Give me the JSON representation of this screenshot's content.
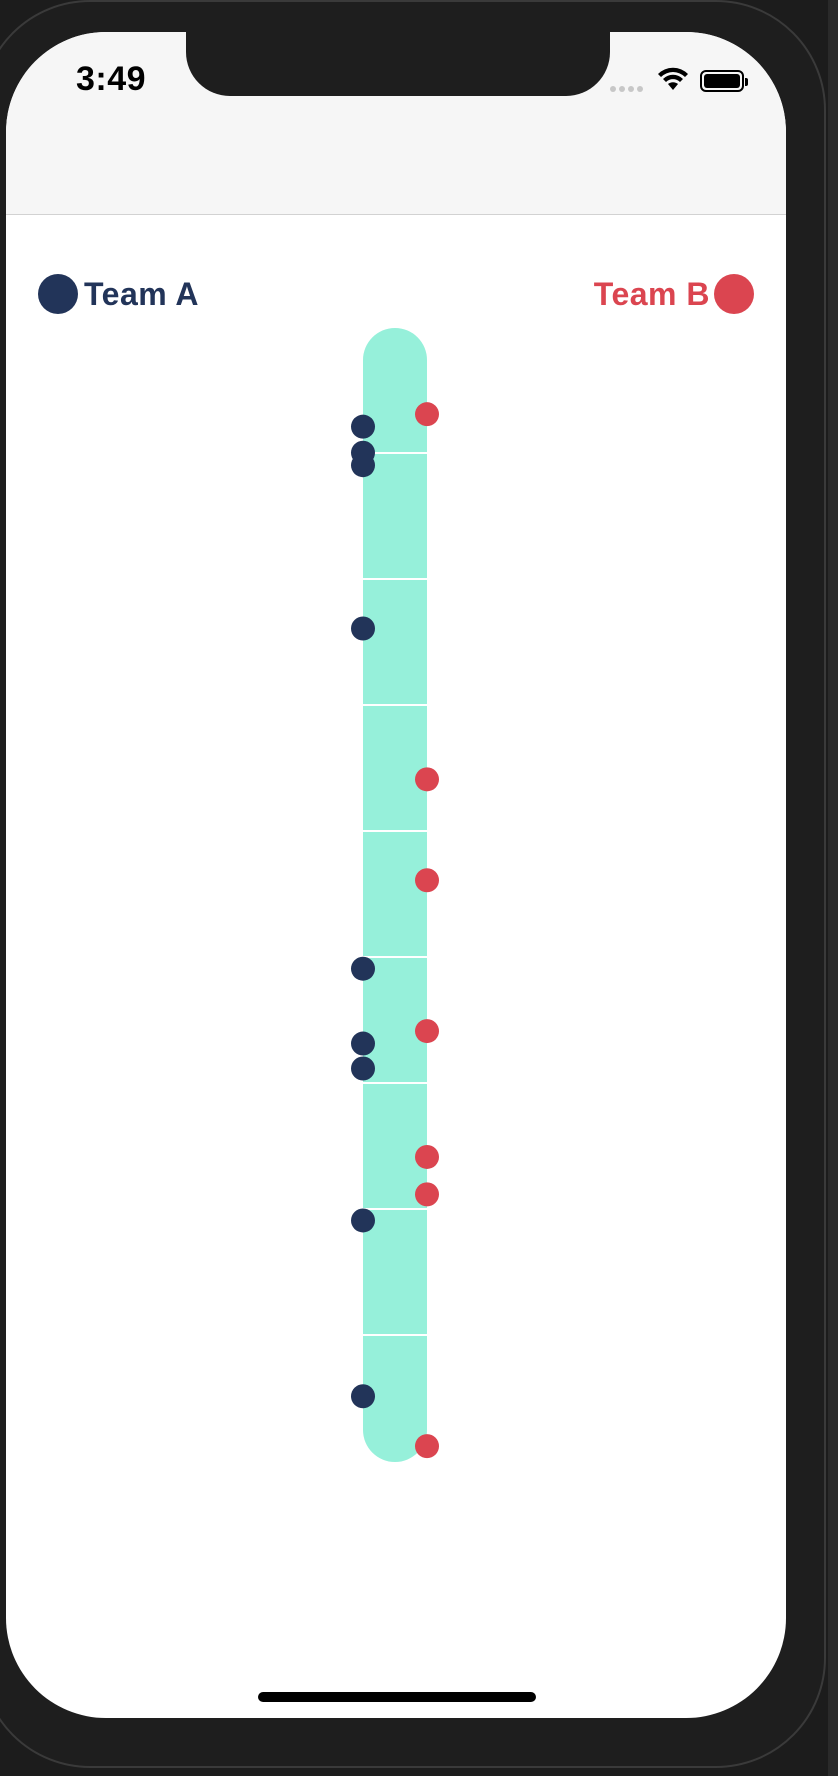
{
  "status_bar": {
    "time": "3:49",
    "signal_icon": "cellular-signal-icon",
    "wifi_icon": "wifi-icon",
    "battery_icon": "battery-icon"
  },
  "legend": {
    "team_a": {
      "label": "Team A",
      "color": "#223459"
    },
    "team_b": {
      "label": "Team B",
      "color": "#db4550"
    }
  },
  "colors": {
    "track": "#96f0da",
    "track_divider": "#ffffff",
    "background": "#ffffff"
  },
  "timeline": {
    "segment_count": 9,
    "team_a_events": [
      0.087,
      0.11,
      0.121,
      0.265,
      0.565,
      0.631,
      0.653,
      0.787,
      0.942
    ],
    "team_b_events": [
      0.076,
      0.398,
      0.487,
      0.62,
      0.731,
      0.764,
      0.986
    ]
  }
}
